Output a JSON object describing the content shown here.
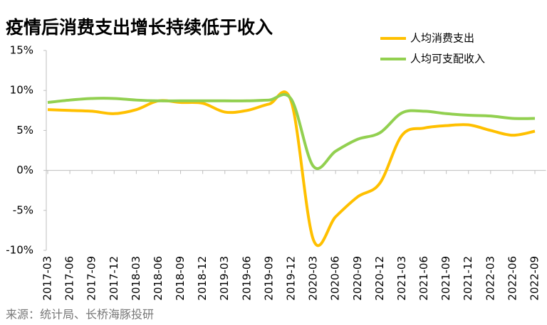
{
  "chart_data": {
    "type": "line",
    "title": "疫情后消费支出增长持续低于收入",
    "source": "来源：统计局、长桥海豚投研",
    "categories": [
      "2017-03",
      "2017-06",
      "2017-09",
      "2017-12",
      "2018-03",
      "2018-06",
      "2018-09",
      "2018-12",
      "2019-03",
      "2019-06",
      "2019-09",
      "2019-12",
      "2020-03",
      "2020-06",
      "2020-09",
      "2020-12",
      "2021-03",
      "2021-06",
      "2021-09",
      "2021-12",
      "2022-03",
      "2022-06",
      "2022-09"
    ],
    "series": [
      {
        "name": "人均消费支出",
        "color": "#FFC000",
        "values": [
          7.6,
          7.5,
          7.4,
          7.1,
          7.6,
          8.7,
          8.5,
          8.4,
          7.3,
          7.5,
          8.3,
          8.6,
          -8.7,
          -5.8,
          -3.3,
          -1.6,
          4.4,
          5.3,
          5.6,
          5.7,
          5.0,
          4.4,
          4.9
        ]
      },
      {
        "name": "人均可支配收入",
        "color": "#92D050",
        "values": [
          8.5,
          8.8,
          9.0,
          9.0,
          8.8,
          8.7,
          8.7,
          8.7,
          8.7,
          8.7,
          8.8,
          8.9,
          0.5,
          2.4,
          3.9,
          4.7,
          7.2,
          7.4,
          7.1,
          6.9,
          6.8,
          6.5,
          6.5
        ]
      }
    ],
    "ylim": [
      -10,
      15
    ],
    "yticks": [
      {
        "value": -10,
        "label": "-10%"
      },
      {
        "value": -5,
        "label": "-5%"
      },
      {
        "value": 0,
        "label": "0%"
      },
      {
        "value": 5,
        "label": "5%"
      },
      {
        "value": 10,
        "label": "10%"
      },
      {
        "value": 15,
        "label": "15%"
      }
    ],
    "legend": "top-right"
  }
}
